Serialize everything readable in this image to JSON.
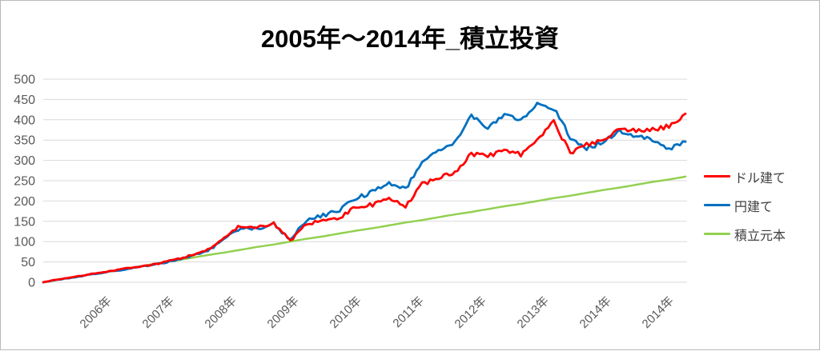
{
  "title": "2005年〜2014年_積立投資",
  "legend": [
    {
      "id": "dollar",
      "label": "ドル建て",
      "color": "#FF0000"
    },
    {
      "id": "yen",
      "label": "円建て",
      "color": "#0070C0"
    },
    {
      "id": "principal",
      "label": "積立元本",
      "color": "#92D050"
    }
  ],
  "colors": {
    "background": "#FFFFFF",
    "grid": "#D9D9D9",
    "axis_label": "#595959",
    "title": "#000000",
    "frame_border": "#B9B9B9",
    "series_dollar": "#FF0000",
    "series_yen": "#0070C0",
    "series_principal": "#92D050"
  },
  "chart_data": {
    "type": "line",
    "title": "2005年〜2014年_積立投資",
    "xlabel": "",
    "ylabel": "",
    "ylim": [
      0,
      500
    ],
    "y_ticks": [
      0,
      50,
      100,
      150,
      200,
      250,
      300,
      350,
      400,
      450,
      500
    ],
    "x_tick_labels": [
      "2006年",
      "2007年",
      "2008年",
      "2009年",
      "2010年",
      "2011年",
      "2012年",
      "2013年",
      "2014年",
      "2014年"
    ],
    "x_description": "quarterly samples from 2005 through late 2014 (index 0..39)",
    "grid": true,
    "legend_position": "right",
    "series": [
      {
        "name": "ドル建て",
        "color": "#FF0000",
        "noisy": true,
        "values": [
          0,
          8,
          14,
          21,
          27,
          34,
          39,
          46,
          56,
          66,
          80,
          108,
          140,
          134,
          146,
          102,
          143,
          152,
          158,
          185,
          192,
          205,
          185,
          242,
          256,
          270,
          315,
          310,
          325,
          315,
          350,
          395,
          318,
          338,
          352,
          378,
          372,
          375,
          385,
          415
        ]
      },
      {
        "name": "円建て",
        "color": "#0070C0",
        "noisy": true,
        "values": [
          0,
          7,
          13,
          20,
          26,
          32,
          38,
          45,
          54,
          64,
          78,
          105,
          136,
          132,
          143,
          104,
          155,
          165,
          177,
          207,
          222,
          243,
          228,
          300,
          322,
          345,
          410,
          380,
          415,
          400,
          438,
          428,
          358,
          330,
          345,
          372,
          360,
          350,
          328,
          346
        ]
      },
      {
        "name": "積立元本",
        "color": "#92D050",
        "noisy": false,
        "values": [
          0,
          7,
          13,
          20,
          27,
          33,
          40,
          47,
          53,
          60,
          67,
          73,
          80,
          87,
          93,
          100,
          107,
          113,
          120,
          127,
          133,
          140,
          147,
          153,
          160,
          167,
          173,
          180,
          187,
          193,
          200,
          207,
          213,
          220,
          227,
          233,
          240,
          247,
          253,
          260
        ]
      }
    ]
  }
}
